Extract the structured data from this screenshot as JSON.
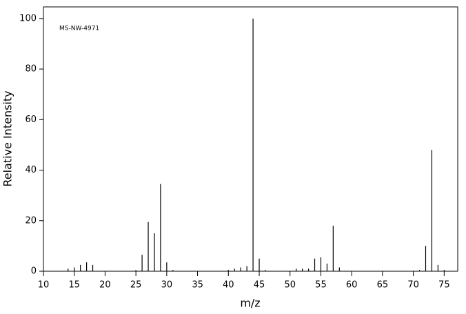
{
  "chart_data": {
    "type": "spectrum",
    "annotation": "MS-NW-4971",
    "xlabel": "m/z",
    "ylabel": "Relative Intensity",
    "x": [
      14,
      15,
      16,
      17,
      18,
      25,
      26,
      27,
      28,
      29,
      30,
      31,
      40,
      41,
      42,
      43,
      44,
      45,
      46,
      51,
      52,
      53,
      54,
      55,
      56,
      57,
      58,
      71,
      72,
      73,
      74,
      75
    ],
    "values": [
      1,
      1.5,
      2.5,
      3.5,
      2.5,
      0.5,
      6.5,
      19.5,
      15,
      34.5,
      3.5,
      0.5,
      0.5,
      1,
      1.5,
      2,
      100,
      5,
      0.5,
      1,
      1,
      1,
      5,
      5.5,
      3,
      18,
      1.5,
      0.5,
      10,
      48,
      2.5,
      0.5
    ],
    "color": "#000000",
    "xlim": [
      10,
      77.2
    ],
    "ylim": [
      0,
      104.6
    ],
    "xticks": [
      10,
      15,
      20,
      25,
      30,
      35,
      40,
      45,
      50,
      55,
      60,
      65,
      70,
      75
    ],
    "yticks": [
      0,
      20,
      40,
      60,
      80,
      100
    ]
  }
}
